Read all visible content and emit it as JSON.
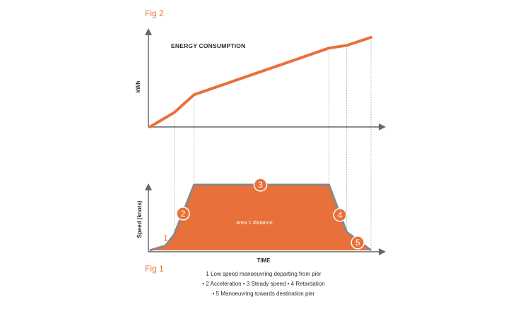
{
  "figure": {
    "fig2_label": "Fig 2",
    "fig1_label": "Fig 1",
    "legend_lines": [
      "1 Low speed manoeuvring departing from pier",
      "• 2 Acceleration • 3 Steady speed • 4 Retardation",
      "• 5 Manoeuvring towards destination pier"
    ],
    "area_label": "area = distance",
    "colors": {
      "accent": "#e8703a",
      "axis": "#666666",
      "line_edge": "#888888",
      "guide": "#999999"
    }
  },
  "chart_data": [
    {
      "type": "line",
      "title": "ENERGY CONSUMPTION",
      "xlabel": "",
      "ylabel": "kWh",
      "x": [
        0,
        11,
        20,
        81,
        89,
        100
      ],
      "y": [
        0,
        16,
        36,
        88,
        91,
        100
      ],
      "xlim": [
        0,
        100
      ],
      "ylim": [
        0,
        100
      ],
      "grid": false
    },
    {
      "type": "area",
      "title": "",
      "xlabel": "TIME",
      "ylabel": "Speed (knots)",
      "x": [
        0,
        7,
        11,
        20,
        81,
        89,
        100
      ],
      "y": [
        0,
        7,
        24,
        100,
        100,
        28,
        0
      ],
      "xlim": [
        0,
        100
      ],
      "ylim": [
        0,
        100
      ],
      "grid": false,
      "phases": [
        {
          "label": "1",
          "x": 4,
          "y": 8
        },
        {
          "label": "2",
          "x": 15,
          "y": 56
        },
        {
          "label": "3",
          "x": 50,
          "y": 100
        },
        {
          "label": "4",
          "x": 86,
          "y": 54
        },
        {
          "label": "5",
          "x": 94,
          "y": 12
        }
      ],
      "guide_x": [
        11,
        20,
        81,
        89,
        100
      ]
    }
  ]
}
